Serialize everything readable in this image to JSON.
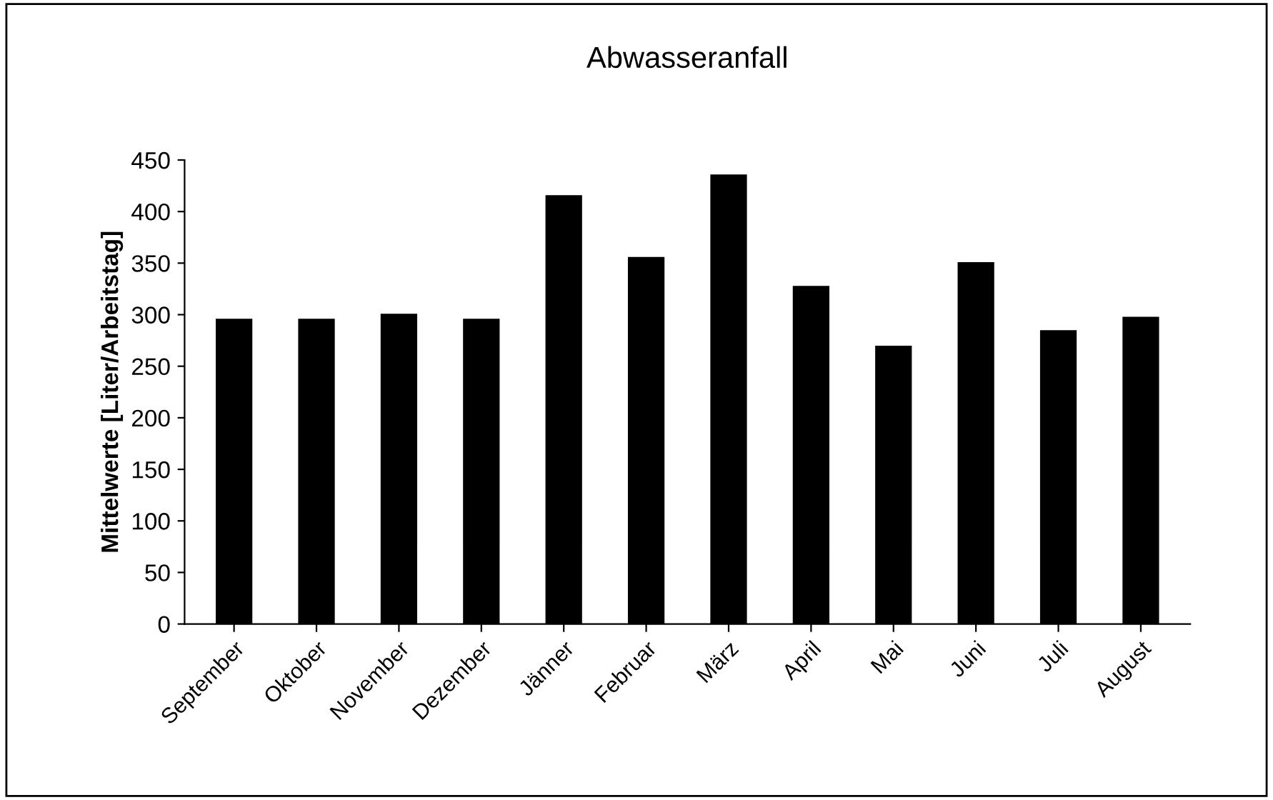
{
  "chart_data": {
    "type": "bar",
    "title": "Abwasseranfall",
    "ylabel": "Mittelwerte [Liter/Arbeitstag]",
    "categories": [
      "September",
      "Oktober",
      "November",
      "Dezember",
      "Jänner",
      "Februar",
      "März",
      "April",
      "Mai",
      "Juni",
      "Juli",
      "August"
    ],
    "values": [
      295,
      295,
      300,
      295,
      415,
      355,
      435,
      327,
      269,
      350,
      284,
      297
    ],
    "color": "#000000",
    "ylim": [
      0,
      450
    ],
    "yticks": [
      0,
      50,
      100,
      150,
      200,
      250,
      300,
      350,
      400,
      450
    ],
    "grid": false
  }
}
